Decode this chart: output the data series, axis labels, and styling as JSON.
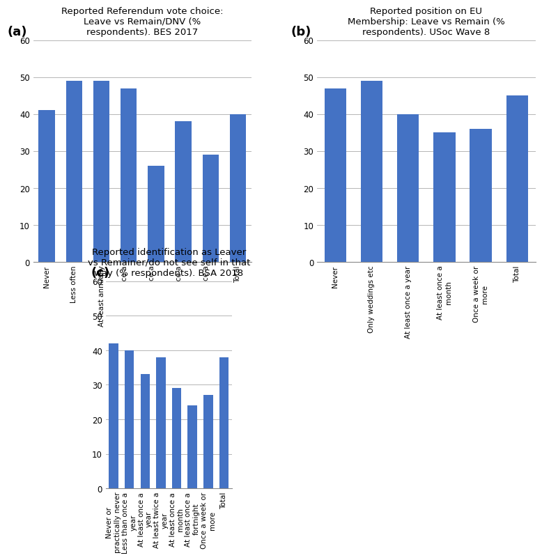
{
  "panel_a": {
    "title": "Reported Referendum vote choice:\nLeave vs Remain/DNV (%\nrespondents). BES 2017",
    "categories": [
      "Never",
      "Less often",
      "At least annually",
      "At least twice a\nyear",
      "At least once a\nmonth",
      "At least twice a\nmonth",
      "At least once a\nweek",
      "Total"
    ],
    "values": [
      41,
      49,
      49,
      47,
      26,
      38,
      29,
      40
    ],
    "ylim": [
      0,
      60
    ],
    "yticks": [
      0,
      10,
      20,
      30,
      40,
      50,
      60
    ]
  },
  "panel_b": {
    "title": "Reported position on EU\nMembership: Leave vs Remain (%\nrespondents). USoc Wave 8",
    "categories": [
      "Never",
      "Only weddings etc",
      "At least once a year",
      "At least once a\nmonth",
      "Once a week or\nmore",
      "Total"
    ],
    "values": [
      47,
      49,
      40,
      35,
      36,
      45
    ],
    "ylim": [
      0,
      60
    ],
    "yticks": [
      0,
      10,
      20,
      30,
      40,
      50,
      60
    ]
  },
  "panel_c": {
    "title": "Reported identification as Leaver\nvs Remainer/do not see self in that\nway (% respondents). BSA 2018",
    "categories": [
      "Never or\npractically never",
      "Less than once a\nyear",
      "At least once a\nyear",
      "At least twice a\nyear",
      "At least once a\nmonth",
      "At least once a\nfortnight",
      "Once a week or\nmore",
      "Total"
    ],
    "values": [
      42,
      40,
      33,
      38,
      29,
      24,
      27,
      38
    ],
    "ylim": [
      0,
      60
    ],
    "yticks": [
      0,
      10,
      20,
      30,
      40,
      50,
      60
    ]
  },
  "bar_color": "#4472C4",
  "grid_color": "#AAAAAA",
  "label_fontsize": 7.5,
  "tick_fontsize": 8.5,
  "title_fontsize": 9.5,
  "panel_label_fontsize": 13
}
